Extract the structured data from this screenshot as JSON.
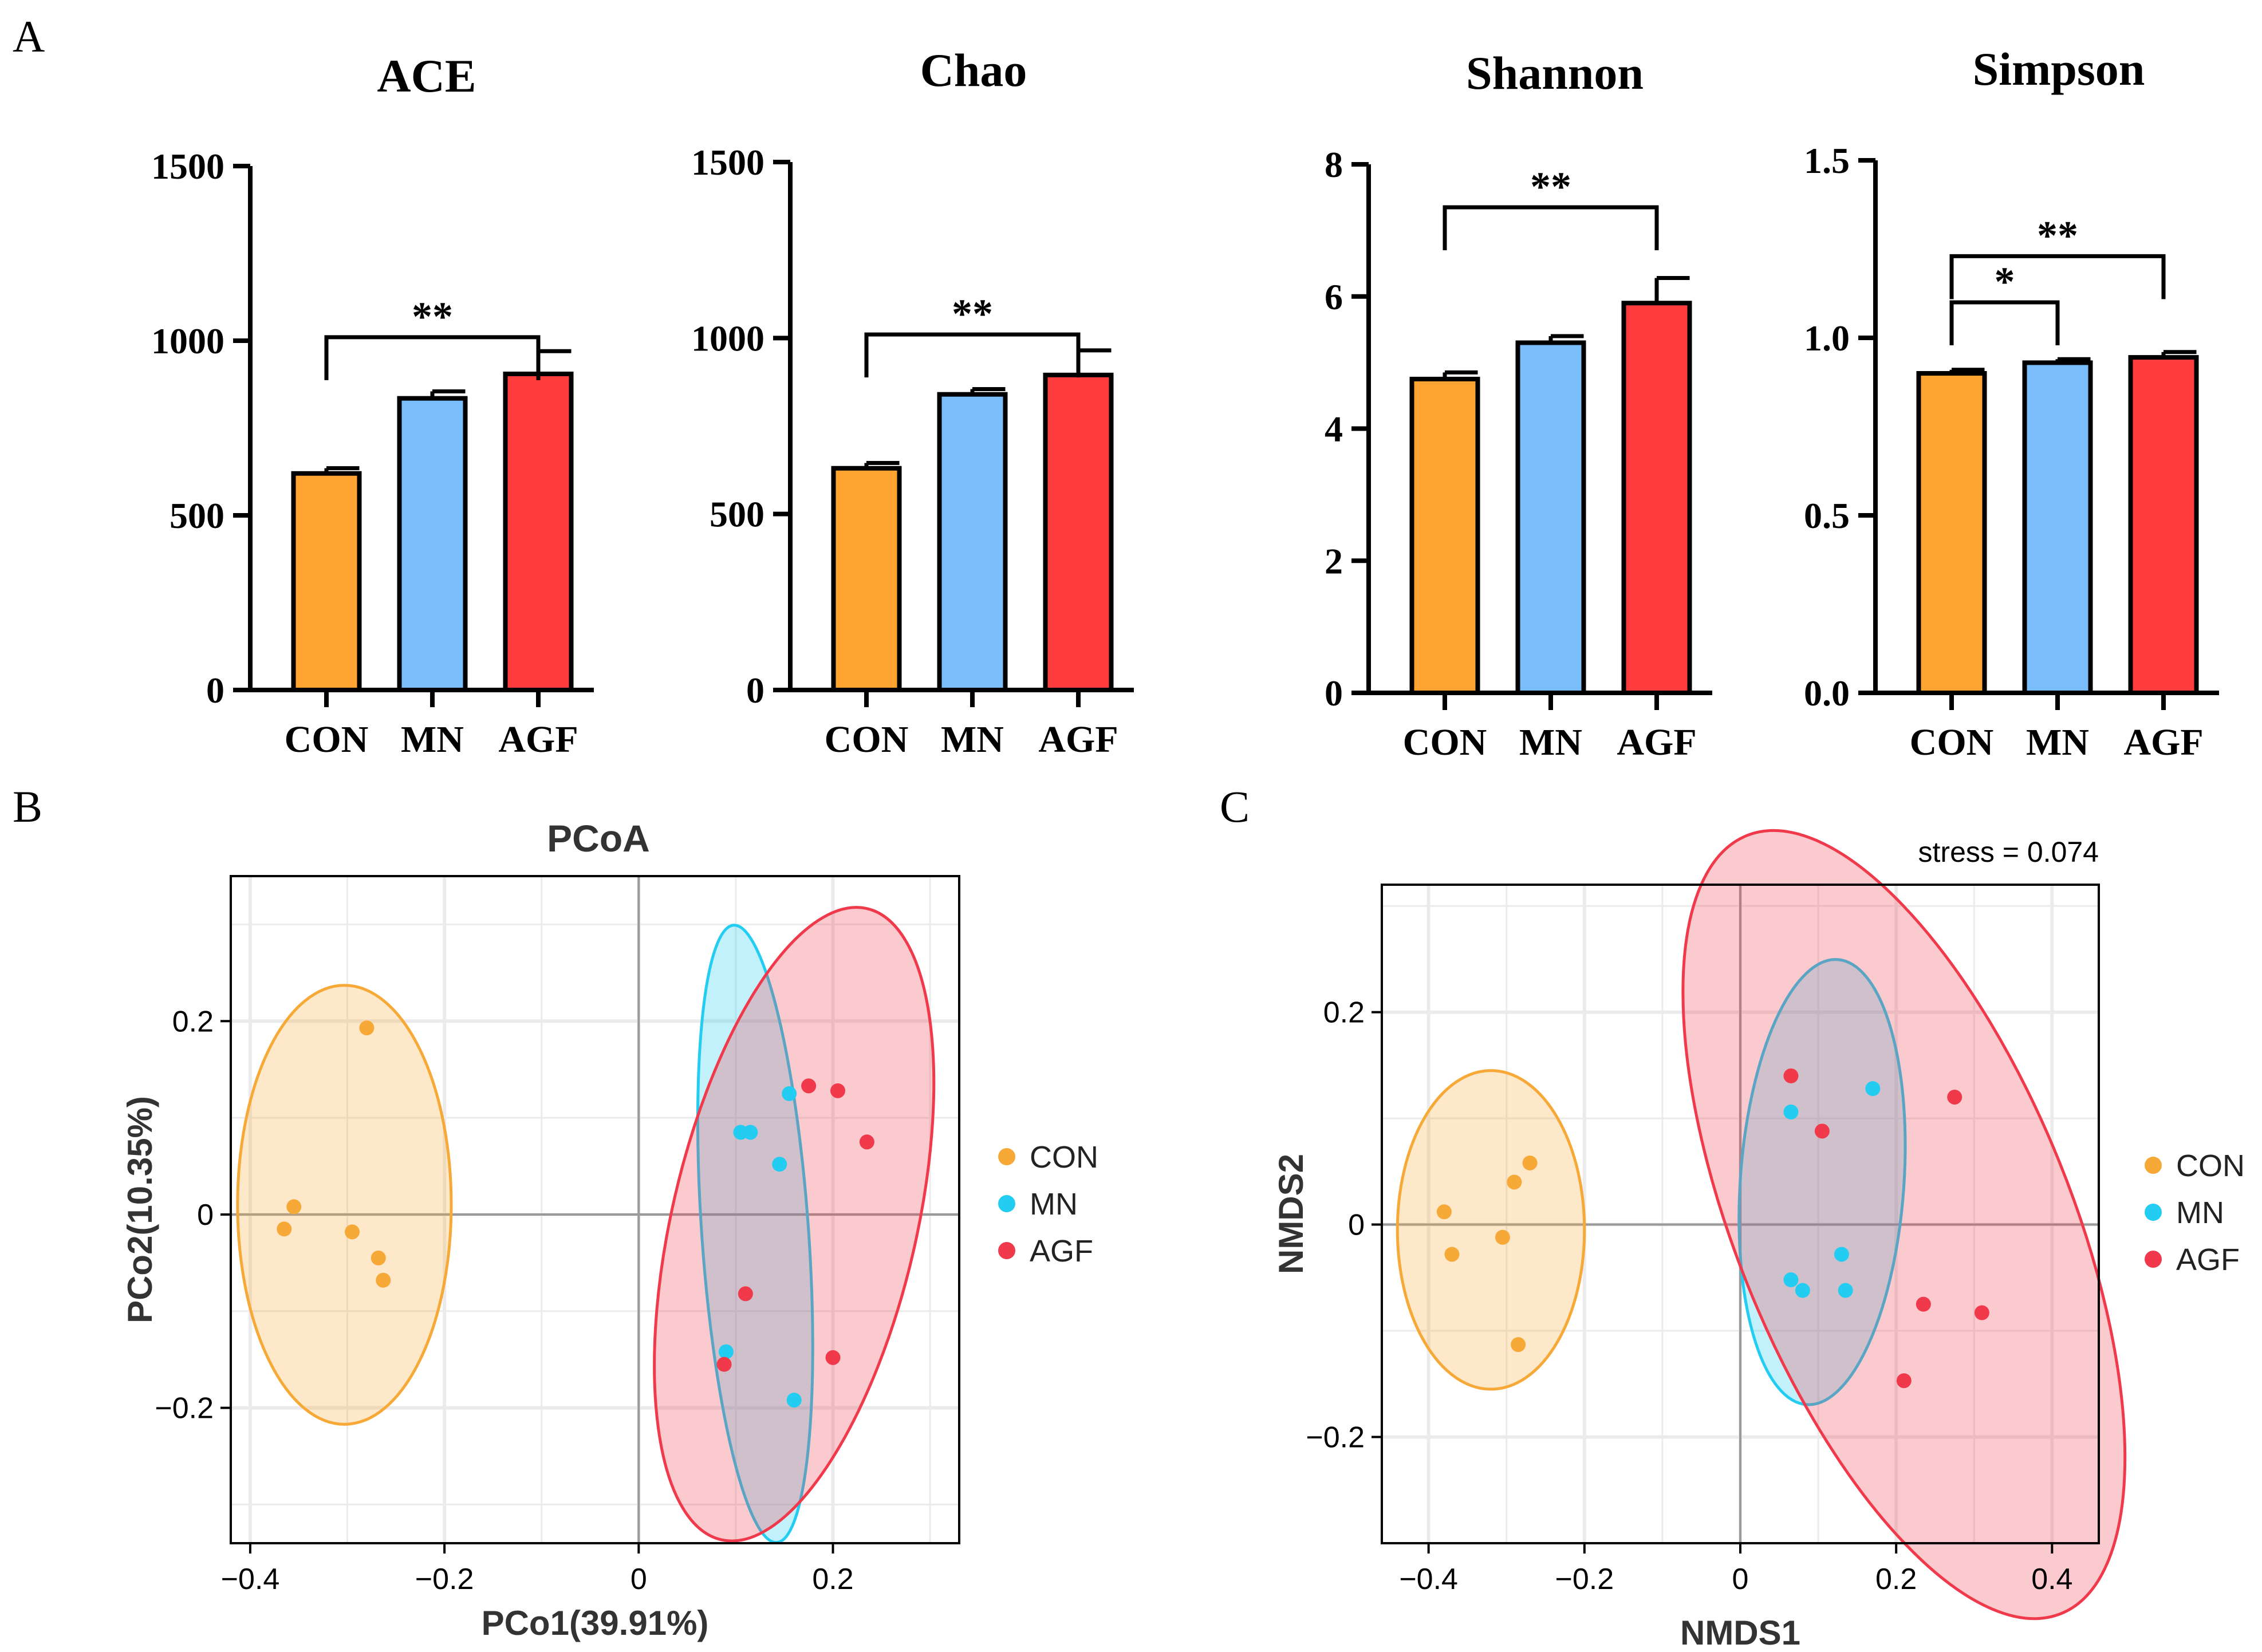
{
  "panel_labels": {
    "A": "A",
    "B": "B",
    "C": "C"
  },
  "colors": {
    "CON": "#FFA431",
    "MN": "#79BEFB",
    "AGF": "#FF3D3D",
    "scatter_CON": "#F7A938",
    "scatter_MN": "#23CDF2",
    "scatter_AGF": "#F03A4B"
  },
  "chart_data": [
    {
      "type": "bar",
      "title": "ACE",
      "categories": [
        "CON",
        "MN",
        "AGF"
      ],
      "values": [
        620,
        835,
        905
      ],
      "errors": [
        15,
        20,
        65
      ],
      "ylim": [
        0,
        1500
      ],
      "yticks": [
        "0",
        "500",
        "1000",
        "1500"
      ],
      "sig": [
        {
          "from": "CON",
          "to": "AGF",
          "level": 1010,
          "label": "**"
        }
      ]
    },
    {
      "type": "bar",
      "title": "Chao",
      "categories": [
        "CON",
        "MN",
        "AGF"
      ],
      "values": [
        630,
        840,
        895
      ],
      "errors": [
        15,
        15,
        70
      ],
      "ylim": [
        0,
        1500
      ],
      "yticks": [
        "0",
        "500",
        "1000",
        "1500"
      ],
      "sig": [
        {
          "from": "CON",
          "to": "AGF",
          "level": 1010,
          "label": "**"
        }
      ]
    },
    {
      "type": "bar",
      "title": "Shannon",
      "categories": [
        "CON",
        "MN",
        "AGF"
      ],
      "values": [
        4.75,
        5.3,
        5.9
      ],
      "errors": [
        0.1,
        0.1,
        0.38
      ],
      "ylim": [
        0,
        8
      ],
      "yticks": [
        "0",
        "2",
        "4",
        "6",
        "8"
      ],
      "sig": [
        {
          "from": "CON",
          "to": "AGF",
          "level": 7.35,
          "label": "**"
        }
      ]
    },
    {
      "type": "bar",
      "title": "Simpson",
      "categories": [
        "CON",
        "MN",
        "AGF"
      ],
      "values": [
        0.9,
        0.93,
        0.945
      ],
      "errors": [
        0.01,
        0.01,
        0.015
      ],
      "ylim": [
        0,
        1.5
      ],
      "yticks": [
        "0.0",
        "0.5",
        "1.0",
        "1.5"
      ],
      "sig": [
        {
          "from": "CON",
          "to": "MN",
          "level": 1.1,
          "label": "*"
        },
        {
          "from": "CON",
          "to": "AGF",
          "level": 1.23,
          "label": "**"
        }
      ]
    },
    {
      "type": "scatter",
      "title": "PCoA",
      "xlabel": "PCo1(39.91%)",
      "ylabel": "PCo2(10.35%)",
      "xlim": [
        -0.42,
        0.33
      ],
      "ylim": [
        -0.34,
        0.35
      ],
      "xticks": [
        -0.4,
        -0.2,
        0,
        0.2
      ],
      "xtick_labels": [
        "−0.4",
        "−0.2",
        "0",
        "0.2"
      ],
      "yticks": [
        -0.2,
        0,
        0.2
      ],
      "ytick_labels": [
        "−0.2",
        "0",
        "0.2"
      ],
      "series": [
        {
          "name": "CON",
          "points": [
            [
              -0.28,
              0.193
            ],
            [
              -0.355,
              0.008
            ],
            [
              -0.365,
              -0.015
            ],
            [
              -0.295,
              -0.018
            ],
            [
              -0.268,
              -0.045
            ],
            [
              -0.263,
              -0.068
            ]
          ],
          "ellipse": {
            "cx": -0.303,
            "cy": 0.01,
            "rx": 0.11,
            "ry": 0.227,
            "angle": 0
          }
        },
        {
          "name": "MN",
          "points": [
            [
              0.155,
              0.125
            ],
            [
              0.105,
              0.085
            ],
            [
              0.115,
              0.085
            ],
            [
              0.145,
              0.052
            ],
            [
              0.09,
              -0.142
            ],
            [
              0.16,
              -0.192
            ]
          ],
          "ellipse": {
            "cx": 0.12,
            "cy": -0.02,
            "rx": 0.055,
            "ry": 0.32,
            "angle": -4
          }
        },
        {
          "name": "AGF",
          "points": [
            [
              0.175,
              0.133
            ],
            [
              0.205,
              0.128
            ],
            [
              0.235,
              0.075
            ],
            [
              0.11,
              -0.082
            ],
            [
              0.2,
              -0.148
            ],
            [
              0.088,
              -0.155
            ]
          ],
          "ellipse": {
            "cx": 0.16,
            "cy": -0.01,
            "rx": 0.126,
            "ry": 0.335,
            "angle": 13
          }
        }
      ]
    },
    {
      "type": "scatter",
      "title": "",
      "annotation": "stress = 0.074",
      "xlabel": "NMDS1",
      "ylabel": "NMDS2",
      "xlim": [
        -0.46,
        0.46
      ],
      "ylim": [
        -0.3,
        0.32
      ],
      "xticks": [
        -0.4,
        -0.2,
        0,
        0.2,
        0.4
      ],
      "xtick_labels": [
        "−0.4",
        "−0.2",
        "0",
        "0.2",
        "0.4"
      ],
      "yticks": [
        -0.2,
        0,
        0.2
      ],
      "ytick_labels": [
        "−0.2",
        "0",
        "0.2"
      ],
      "series": [
        {
          "name": "CON",
          "points": [
            [
              -0.27,
              0.058
            ],
            [
              -0.29,
              0.04
            ],
            [
              -0.38,
              0.012
            ],
            [
              -0.305,
              -0.012
            ],
            [
              -0.37,
              -0.028
            ],
            [
              -0.285,
              -0.113
            ]
          ],
          "ellipse": {
            "cx": -0.32,
            "cy": -0.005,
            "rx": 0.12,
            "ry": 0.15,
            "angle": 0
          }
        },
        {
          "name": "MN",
          "points": [
            [
              0.17,
              0.128
            ],
            [
              0.065,
              0.106
            ],
            [
              0.13,
              -0.028
            ],
            [
              0.065,
              -0.052
            ],
            [
              0.08,
              -0.062
            ],
            [
              0.135,
              -0.062
            ]
          ],
          "ellipse": {
            "cx": 0.105,
            "cy": 0.04,
            "rx": 0.105,
            "ry": 0.21,
            "angle": 4
          }
        },
        {
          "name": "AGF",
          "points": [
            [
              0.065,
              0.14
            ],
            [
              0.275,
              0.12
            ],
            [
              0.105,
              0.088
            ],
            [
              0.235,
              -0.075
            ],
            [
              0.31,
              -0.083
            ],
            [
              0.21,
              -0.147
            ]
          ],
          "ellipse": {
            "cx": 0.21,
            "cy": 0.0,
            "rx": 0.215,
            "ry": 0.395,
            "angle": -22
          }
        }
      ]
    }
  ]
}
